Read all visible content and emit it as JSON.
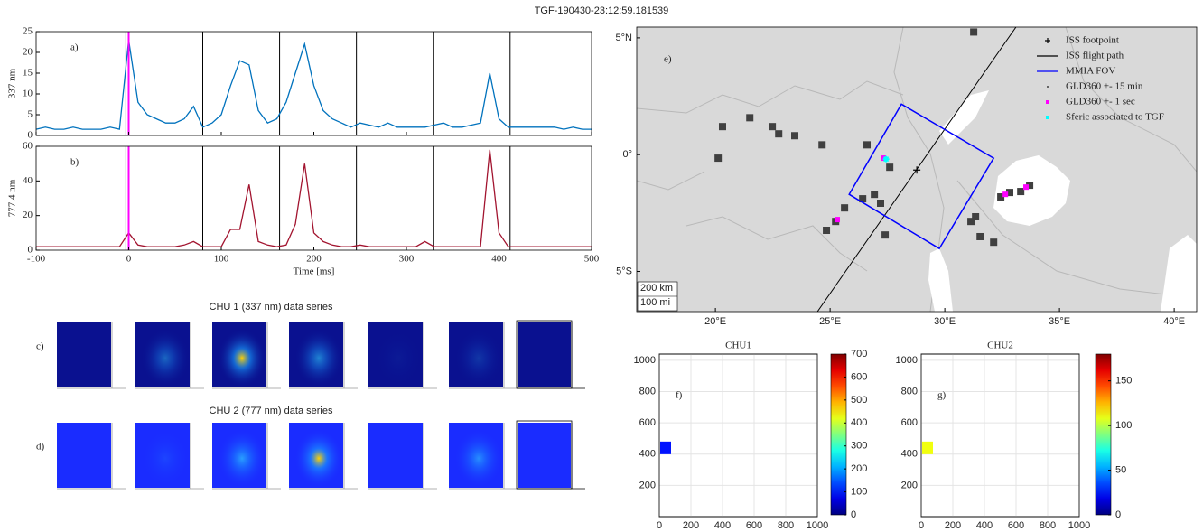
{
  "title": "TGF-190430-23:12:59.181539",
  "chart_data": [
    {
      "type": "line",
      "label": "a)",
      "ylabel": "337 nm",
      "x": [
        -100,
        -90,
        -80,
        -70,
        -60,
        -50,
        -40,
        -30,
        -20,
        -10,
        0,
        10,
        20,
        30,
        40,
        50,
        60,
        70,
        80,
        90,
        100,
        110,
        120,
        130,
        140,
        150,
        160,
        170,
        180,
        190,
        200,
        210,
        220,
        230,
        240,
        250,
        260,
        270,
        280,
        290,
        300,
        310,
        320,
        330,
        340,
        350,
        360,
        370,
        380,
        390,
        400,
        410,
        420,
        430,
        440,
        450,
        460,
        470,
        480,
        490,
        500
      ],
      "series": [
        {
          "color": "#0072bd",
          "values": [
            1.5,
            2,
            1.5,
            1.5,
            2,
            1.5,
            1.5,
            1.5,
            2,
            1.5,
            23,
            8,
            5,
            4,
            3,
            3,
            4,
            7,
            2,
            3,
            5,
            12,
            18,
            17,
            6,
            3,
            4,
            8,
            15,
            22,
            12,
            6,
            4,
            3,
            2,
            3,
            2.5,
            2,
            3,
            2,
            2,
            2,
            2,
            2.5,
            3,
            2,
            2,
            2.5,
            3,
            15,
            4,
            2,
            2,
            2,
            2,
            2,
            2,
            1.5,
            2,
            1.5,
            1.5
          ]
        }
      ],
      "xlim": [
        -100,
        500
      ],
      "ylim": [
        0,
        25
      ],
      "xticks": [
        -100,
        0,
        100,
        200,
        300,
        400,
        500
      ],
      "yticks": [
        0,
        5,
        10,
        15,
        20,
        25
      ],
      "show_xtick_labels": false,
      "frames": [
        -3,
        80,
        163,
        246,
        329,
        412
      ],
      "frame_color": "#000000",
      "marker": 0,
      "marker_color": "#ff00ff"
    },
    {
      "type": "line",
      "label": "b)",
      "ylabel": "777.4 nm",
      "xlabel": "Time [ms]",
      "x": [
        -100,
        -90,
        -80,
        -70,
        -60,
        -50,
        -40,
        -30,
        -20,
        -10,
        0,
        10,
        20,
        30,
        40,
        50,
        60,
        70,
        80,
        90,
        100,
        110,
        120,
        130,
        140,
        150,
        160,
        170,
        180,
        190,
        200,
        210,
        220,
        230,
        240,
        250,
        260,
        270,
        280,
        290,
        300,
        310,
        320,
        330,
        340,
        350,
        360,
        370,
        380,
        390,
        400,
        410,
        420,
        430,
        440,
        450,
        460,
        470,
        480,
        490,
        500
      ],
      "series": [
        {
          "color": "#a2142f",
          "values": [
            2,
            2,
            2,
            2,
            2,
            2,
            2,
            2,
            2,
            2,
            10,
            3,
            2,
            2,
            2,
            2,
            3,
            5,
            2,
            2,
            2,
            12,
            12,
            38,
            5,
            3,
            2,
            3,
            15,
            50,
            10,
            5,
            3,
            2,
            2,
            3,
            2,
            2,
            2,
            2,
            2,
            2,
            5,
            2,
            2,
            2,
            2,
            2,
            2,
            58,
            10,
            2,
            2,
            2,
            2,
            2,
            2,
            2,
            2,
            2,
            2
          ]
        }
      ],
      "xlim": [
        -100,
        500
      ],
      "ylim": [
        0,
        60
      ],
      "xticks": [
        -100,
        0,
        100,
        200,
        300,
        400,
        500
      ],
      "yticks": [
        0,
        20,
        40,
        60
      ],
      "show_xtick_labels": true,
      "frames": [
        -3,
        80,
        163,
        246,
        329,
        412
      ],
      "frame_color": "#000000",
      "marker": 0,
      "marker_color": "#ff00ff"
    },
    {
      "type": "map",
      "label": "e)",
      "xlim": [
        16.57,
        40.98
      ],
      "ylim": [
        -6.72,
        5.46
      ],
      "xticks": [
        {
          "value": 20,
          "label": "20°E"
        },
        {
          "value": 25,
          "label": "25°E"
        },
        {
          "value": 30,
          "label": "30°E"
        },
        {
          "value": 35,
          "label": "35°E"
        },
        {
          "value": 40,
          "label": "40°E"
        }
      ],
      "yticks": [
        {
          "value": 5,
          "label": "5°N"
        },
        {
          "value": 0,
          "label": "0°"
        },
        {
          "value": -5,
          "label": "5°S"
        }
      ],
      "legend": "upper right",
      "scale_labels": [
        "200 km",
        "100 mi"
      ],
      "series": [
        {
          "name": "ISS footpoint",
          "color": "#000000",
          "marker": "plus",
          "x": [
            28.78
          ],
          "y": [
            -0.66
          ]
        },
        {
          "name": "ISS flight path",
          "color": "#000000",
          "marker": "line",
          "x": [
            33.1,
            24.45
          ],
          "y": [
            5.46,
            -6.72
          ]
        },
        {
          "name": "MMIA FOV",
          "color": "#0000ff",
          "marker": "polygon",
          "x": [
            28.11,
            32.13,
            29.76,
            25.83
          ],
          "y": [
            2.16,
            -0.15,
            -4.02,
            -1.7
          ]
        },
        {
          "name": "GLD360 +- 15 min",
          "color": "#404040",
          "marker": "dot",
          "x": [
            20.31,
            21.5,
            22.48,
            22.76,
            23.46,
            24.65,
            20.12,
            26.61,
            26.93,
            26.42,
            27.2,
            25.63,
            25.24,
            24.84,
            27.6,
            27.4,
            31.14,
            31.54,
            32.13,
            32.83,
            32.44,
            33.7,
            33.31,
            31.34,
            31.26
          ],
          "y": [
            1.2,
            1.58,
            1.2,
            0.89,
            0.81,
            0.42,
            -0.15,
            0.42,
            -1.7,
            -1.89,
            -2.08,
            -2.28,
            -2.86,
            -3.24,
            -0.54,
            -3.44,
            -2.86,
            -3.51,
            -3.75,
            -1.62,
            -1.81,
            -1.31,
            -1.58,
            -2.66,
            5.25
          ]
        },
        {
          "name": "GLD360 +- 1 sec",
          "color": "#ff00ff",
          "marker": "square",
          "x": [
            27.32,
            25.31,
            32.64,
            33.54
          ],
          "y": [
            -0.15,
            -2.78,
            -1.7,
            -1.39
          ]
        },
        {
          "name": "Sferic associated to TGF",
          "color": "#00ffff",
          "marker": "star",
          "x": [
            27.44
          ],
          "y": [
            -0.19
          ]
        }
      ]
    },
    {
      "type": "heatmap",
      "title": "CHU1",
      "label": "f)",
      "xlim": [
        0,
        1000
      ],
      "ylim": [
        0,
        1040
      ],
      "xticks": [
        0,
        200,
        400,
        600,
        800,
        1000
      ],
      "yticks": [
        200,
        400,
        600,
        800,
        1000
      ],
      "x": [
        40
      ],
      "y": [
        440
      ],
      "values": [
        100
      ],
      "clim": [
        0,
        700
      ],
      "cticks": [
        0,
        100,
        200,
        300,
        400,
        500,
        600,
        700
      ],
      "colormap": "jet"
    },
    {
      "type": "heatmap",
      "title": "CHU2",
      "label": "g)",
      "xlim": [
        0,
        1000
      ],
      "ylim": [
        0,
        1040
      ],
      "xticks": [
        0,
        200,
        400,
        600,
        800,
        1000
      ],
      "yticks": [
        200,
        400,
        600,
        800,
        1000
      ],
      "x": [
        40
      ],
      "y": [
        440
      ],
      "values": [
        110
      ],
      "clim": [
        0,
        180
      ],
      "cticks": [
        0,
        50,
        100,
        150
      ],
      "colormap": "jet"
    }
  ],
  "image_rows": [
    {
      "title": "CHU 1 (337 nm) data series",
      "label": "c)"
    },
    {
      "title": "CHU 2 (777 nm) data series",
      "label": "d)"
    }
  ]
}
